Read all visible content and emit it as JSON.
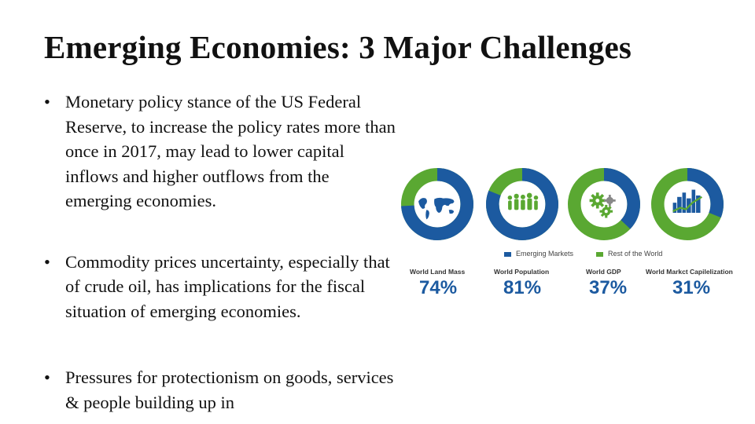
{
  "slide": {
    "title": "Emerging Economies: 3 Major Challenges",
    "bullets": [
      {
        "marker": "•",
        "text": "Monetary policy stance of the US Federal Reserve, to increase the policy rates more than once in 2017, may lead to lower capital inflows and higher outflows from the emerging economies."
      },
      {
        "marker": "•",
        "text": "Commodity prices uncertainty, especially that of crude oil, has implications for the fiscal situation of emerging economies."
      },
      {
        "marker": "•",
        "text": "Pressures for protectionism on goods, services & people building up in"
      }
    ]
  },
  "infographic": {
    "colors": {
      "emerging": "#1c5aa0",
      "rest": "#5aa832",
      "icon_gray": "#888888"
    },
    "legend": {
      "emerging": "Emerging Markets",
      "rest": "Rest of the World"
    },
    "items": [
      {
        "label": "World Land Mass",
        "percent_text": "74%",
        "share": 0.74,
        "icon": "world-map-icon"
      },
      {
        "label": "World Population",
        "percent_text": "81%",
        "share": 0.81,
        "icon": "people-icon"
      },
      {
        "label": "World GDP",
        "percent_text": "37%",
        "share": 0.37,
        "icon": "gears-icon"
      },
      {
        "label": "World Markct Capilelization",
        "percent_text": "31%",
        "share": 0.31,
        "icon": "city-growth-icon"
      }
    ]
  }
}
